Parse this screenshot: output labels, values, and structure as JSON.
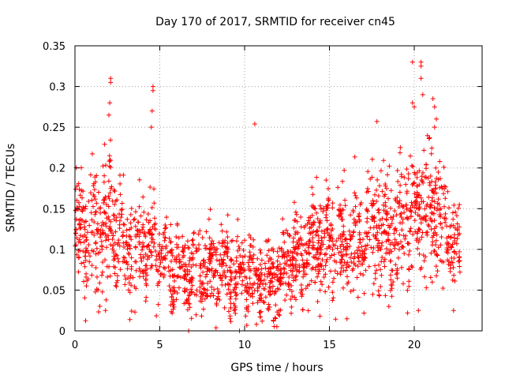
{
  "chart_data": {
    "type": "scatter",
    "title": "Day 170 of 2017, SRMTID for receiver cn45",
    "xlabel": "GPS time / hours",
    "ylabel": "SRMTID / TECUs",
    "xlim": [
      0,
      24
    ],
    "ylim": [
      0,
      0.35
    ],
    "xticks": [
      0,
      5,
      10,
      15,
      20
    ],
    "xtick_labels": [
      "0",
      "5",
      "10",
      "15",
      "20"
    ],
    "yticks": [
      0,
      0.05,
      0.1,
      0.15,
      0.2,
      0.25,
      0.3,
      0.35
    ],
    "ytick_labels": [
      "0",
      "0.05",
      "0.1",
      "0.15",
      "0.2",
      "0.25",
      "0.3",
      "0.35"
    ],
    "grid": true,
    "marker": "+",
    "color": "#ff0000",
    "seed": 170,
    "points_per_hour": 90,
    "profile_hours": [
      0,
      1,
      2,
      3,
      4,
      5,
      6,
      7,
      8,
      9,
      10,
      11,
      12,
      13,
      14,
      15,
      16,
      17,
      18,
      19,
      20,
      21,
      22,
      22.7
    ],
    "profile_center": [
      0.12,
      0.12,
      0.13,
      0.1,
      0.11,
      0.09,
      0.075,
      0.08,
      0.075,
      0.075,
      0.07,
      0.06,
      0.06,
      0.09,
      0.11,
      0.11,
      0.1,
      0.11,
      0.12,
      0.12,
      0.15,
      0.16,
      0.12,
      0.1
    ],
    "profile_spread": [
      0.035,
      0.04,
      0.05,
      0.035,
      0.04,
      0.03,
      0.025,
      0.025,
      0.025,
      0.028,
      0.028,
      0.025,
      0.025,
      0.03,
      0.035,
      0.035,
      0.035,
      0.035,
      0.04,
      0.04,
      0.05,
      0.055,
      0.04,
      0.035
    ],
    "outliers": [
      {
        "x": 2.1,
        "y": 0.31
      },
      {
        "x": 2.1,
        "y": 0.305
      },
      {
        "x": 2.05,
        "y": 0.28
      },
      {
        "x": 2.0,
        "y": 0.265
      },
      {
        "x": 4.6,
        "y": 0.3
      },
      {
        "x": 4.6,
        "y": 0.295
      },
      {
        "x": 4.55,
        "y": 0.27
      },
      {
        "x": 4.5,
        "y": 0.25
      },
      {
        "x": 10.6,
        "y": 0.254
      },
      {
        "x": 17.8,
        "y": 0.257
      },
      {
        "x": 19.9,
        "y": 0.33
      },
      {
        "x": 20.4,
        "y": 0.33
      },
      {
        "x": 20.4,
        "y": 0.325
      },
      {
        "x": 20.4,
        "y": 0.31
      },
      {
        "x": 20.5,
        "y": 0.29
      },
      {
        "x": 19.9,
        "y": 0.28
      },
      {
        "x": 21.1,
        "y": 0.285
      },
      {
        "x": 21.2,
        "y": 0.275
      },
      {
        "x": 20.0,
        "y": 0.275
      },
      {
        "x": 21.3,
        "y": 0.26
      },
      {
        "x": 21.2,
        "y": 0.25
      },
      {
        "x": 6.7,
        "y": 0.0
      },
      {
        "x": 9.7,
        "y": 0.0
      },
      {
        "x": 11.9,
        "y": 0.005
      },
      {
        "x": 10.7,
        "y": 0.008
      },
      {
        "x": 11.7,
        "y": 0.012
      },
      {
        "x": 12.0,
        "y": 0.02
      },
      {
        "x": 1.8,
        "y": 0.025
      },
      {
        "x": 18.5,
        "y": 0.03
      }
    ]
  }
}
